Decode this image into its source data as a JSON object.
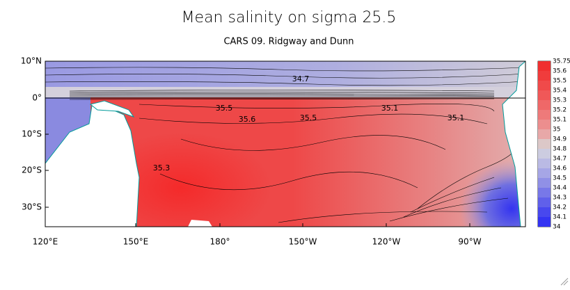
{
  "title": "Mean salinity on sigma 25.5",
  "subtitle": "CARS 09. Ridgway and Dunn",
  "map": {
    "lat_labels": [
      "10°N",
      "0°",
      "10°S",
      "20°S",
      "30°S"
    ],
    "lon_labels": [
      "120°E",
      "150°E",
      "180°",
      "150°W",
      "120°W",
      "90°W"
    ],
    "contour_labels": [
      "34.7",
      "35.5",
      "35.6",
      "35.5",
      "35.1",
      "35.1",
      "35.3"
    ]
  },
  "colorbar": {
    "labels": [
      "35.75",
      "35.6",
      "35.5",
      "35.4",
      "35.3",
      "35.2",
      "35.1",
      "35",
      "34.9",
      "34.8",
      "34.7",
      "34.6",
      "34.5",
      "34.4",
      "34.3",
      "34.2",
      "34.1",
      "34"
    ],
    "colors": [
      "#f03030",
      "#f03c3c",
      "#f04a4a",
      "#f05858",
      "#ef6868",
      "#ee7a7a",
      "#ec8e8e",
      "#e8a8a8",
      "#dcc8c8",
      "#cccce0",
      "#babae4",
      "#a6a6e6",
      "#9090e6",
      "#7878e8",
      "#6060ea",
      "#4848ee",
      "#3434f2"
    ]
  }
}
